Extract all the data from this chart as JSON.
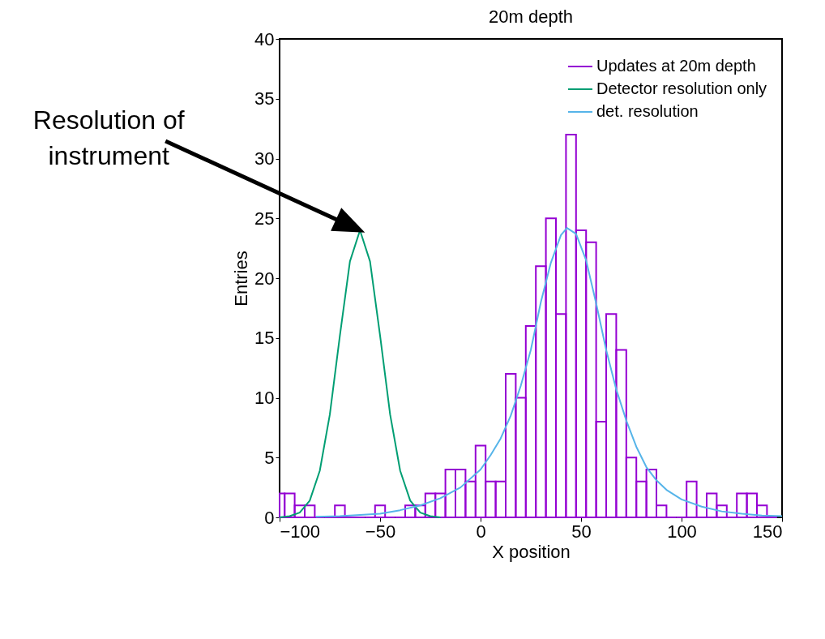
{
  "chart_data": {
    "type": "histogram",
    "title": "20m depth",
    "xlabel": "X position",
    "ylabel": "Entries",
    "xlim": [
      -100,
      150
    ],
    "xticks": [
      -100,
      -50,
      0,
      50,
      100,
      150
    ],
    "ylim": [
      0,
      40
    ],
    "yticks": [
      0,
      5,
      10,
      15,
      20,
      25,
      30,
      35,
      40
    ],
    "grid": false,
    "legend": "top right",
    "marker": "none",
    "line_style": "solid",
    "annotations": [
      "Resolution of\ninstrument"
    ],
    "series": [
      {
        "name": "Updates at 20m depth",
        "color": "#9400d3",
        "bins": [
          -100,
          -97.5,
          -92.5,
          -87.5,
          -82.5,
          -77.5,
          -72.5,
          -67.5,
          -62.5,
          -57.5,
          -52.5,
          -47.5,
          -42.5,
          -37.5,
          -32.5,
          -27.5,
          -22.5,
          -17.5,
          -12.5,
          -7.5,
          -2.5,
          2.5,
          7.5,
          12.5,
          17.5,
          22.5,
          27.5,
          32.5,
          37.5,
          42.5,
          47.5,
          52.5,
          57.5,
          62.5,
          67.5,
          72.5,
          77.5,
          82.5,
          87.5,
          92.5,
          97.5,
          102.5,
          107.5,
          112.5,
          117.5,
          122.5,
          127.5,
          132.5,
          137.5,
          142.5,
          147.5
        ],
        "values": [
          2,
          2,
          1,
          1,
          0,
          0,
          1,
          0,
          0,
          0,
          1,
          0,
          0,
          1,
          1,
          2,
          2,
          4,
          4,
          3,
          6,
          3,
          3,
          12,
          10,
          16,
          21,
          25,
          17,
          32,
          24,
          23,
          8,
          17,
          14,
          5,
          3,
          4,
          1,
          0,
          0,
          3,
          0,
          2,
          1,
          0,
          2,
          2,
          1,
          0
        ]
      },
      {
        "type": "line",
        "name": "Detector resolution only",
        "color": "#009e73",
        "x": [
          -100,
          -95,
          -90,
          -85,
          -80,
          -75,
          -70,
          -65,
          -60,
          -55,
          -50,
          -45,
          -40,
          -35,
          -30,
          -25,
          -20
        ],
        "values": [
          0,
          0.1,
          0.4,
          1.4,
          3.9,
          8.6,
          15.2,
          21.4,
          24,
          21.4,
          15.2,
          8.6,
          3.9,
          1.4,
          0.4,
          0.1,
          0
        ]
      },
      {
        "type": "line",
        "name": "det. resolution",
        "color": "#56b4e9",
        "x": [
          -82,
          -70,
          -60,
          -50,
          -40,
          -30,
          -20,
          -10,
          0,
          5,
          10,
          15,
          20,
          25,
          30,
          35,
          40,
          43,
          47.5,
          52.5,
          57.5,
          62.5,
          67.5,
          72.5,
          77.5,
          82.5,
          87.5,
          92.5,
          100,
          110,
          120,
          130,
          140,
          150
        ],
        "values": [
          0.05,
          0.1,
          0.2,
          0.3,
          0.6,
          1,
          1.6,
          2.5,
          4,
          5.2,
          6.6,
          8.5,
          11,
          14,
          18,
          21.3,
          23.6,
          24.2,
          23.7,
          21.5,
          17.9,
          14,
          10.7,
          8.1,
          5.9,
          4.2,
          3.1,
          2.3,
          1.5,
          0.9,
          0.5,
          0.3,
          0.15,
          0.1
        ]
      }
    ]
  }
}
